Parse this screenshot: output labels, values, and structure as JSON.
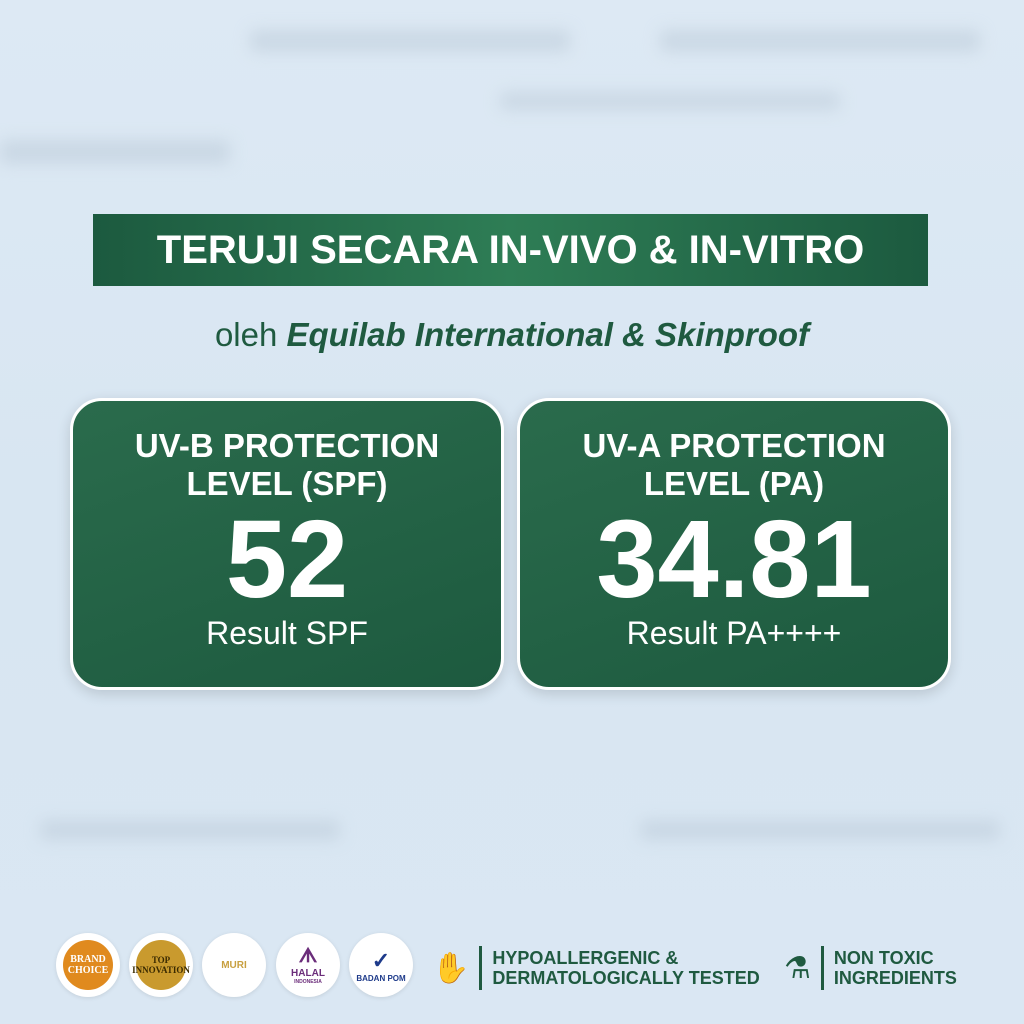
{
  "headline": "TERUJI SECARA IN-VIVO & IN-VITRO",
  "subheadline": {
    "prefix": "oleh",
    "emphasis": "Equilab International & Skinproof"
  },
  "cards": [
    {
      "heading_line1": "UV-B PROTECTION",
      "heading_line2": "LEVEL (SPF)",
      "value": "52",
      "result": "Result SPF"
    },
    {
      "heading_line1": "UV-A PROTECTION",
      "heading_line2": "LEVEL (PA)",
      "value": "34.81",
      "result": "Result PA++++"
    }
  ],
  "logos": [
    {
      "name": "BRAND CHOICE"
    },
    {
      "name": "TOP INNOVATION"
    },
    {
      "name": "MURI"
    },
    {
      "name": "HALAL",
      "sub": "INDONESIA"
    },
    {
      "name": "BADAN POM"
    }
  ],
  "badges": [
    {
      "icon": "hand-leaf-icon",
      "line1": "HYPOALLERGENIC &",
      "line2": "DERMATOLOGICALLY TESTED"
    },
    {
      "icon": "flask-leaf-icon",
      "line1": "NON TOXIC",
      "line2": "INGREDIENTS"
    }
  ],
  "colors": {
    "brand_green": "#1d5a3f",
    "background": "#dde9f4"
  }
}
